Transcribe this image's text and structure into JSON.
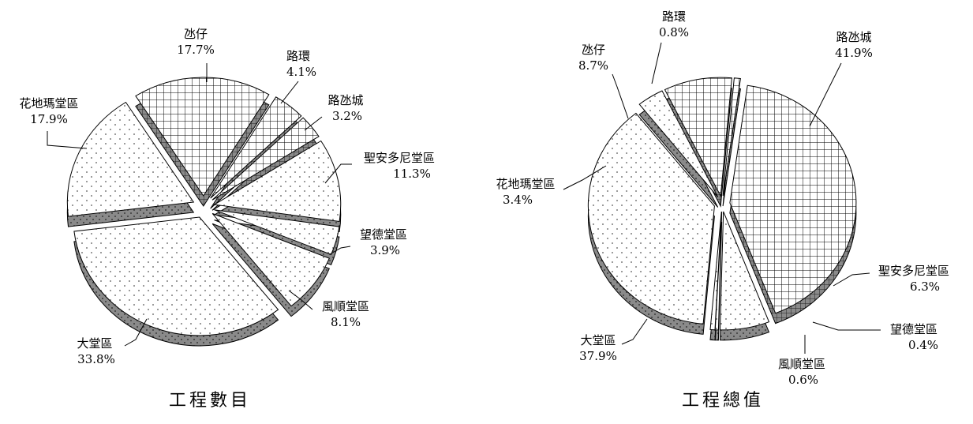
{
  "chart_data": [
    {
      "type": "pie",
      "title": "工程數目",
      "categories": [
        "路氹城",
        "聖安多尼堂區",
        "望德堂區",
        "風順堂區",
        "大堂區",
        "花地瑪堂區",
        "氹仔",
        "路環"
      ],
      "values": [
        3.2,
        11.3,
        3.9,
        8.1,
        33.8,
        17.9,
        17.7,
        4.1
      ],
      "labels": [
        "3.2%",
        "11.3%",
        "3.9%",
        "8.1%",
        "33.8%",
        "17.9%",
        "17.7%",
        "4.1%"
      ],
      "patterns": [
        "grid",
        "dots",
        "dots",
        "dots",
        "dots",
        "dots",
        "grid",
        "grid"
      ],
      "exploded": true,
      "style": "3d"
    },
    {
      "type": "pie",
      "title": "工程總值",
      "categories": [
        "路氹城",
        "聖安多尼堂區",
        "望德堂區",
        "風順堂區",
        "大堂區",
        "花地瑪堂區",
        "氹仔",
        "路環"
      ],
      "values": [
        41.9,
        6.3,
        0.4,
        0.6,
        37.9,
        3.4,
        8.7,
        0.8
      ],
      "labels": [
        "41.9%",
        "6.3%",
        "0.4%",
        "0.6%",
        "37.9%",
        "3.4%",
        "8.7%",
        "0.8%"
      ],
      "patterns": [
        "grid",
        "dots",
        "dots",
        "dots",
        "dots",
        "dots",
        "grid",
        "grid"
      ],
      "exploded": true,
      "style": "3d"
    }
  ],
  "colors": {
    "face": "#ffffff",
    "side": "#8a8a8a",
    "stroke": "#000000"
  }
}
